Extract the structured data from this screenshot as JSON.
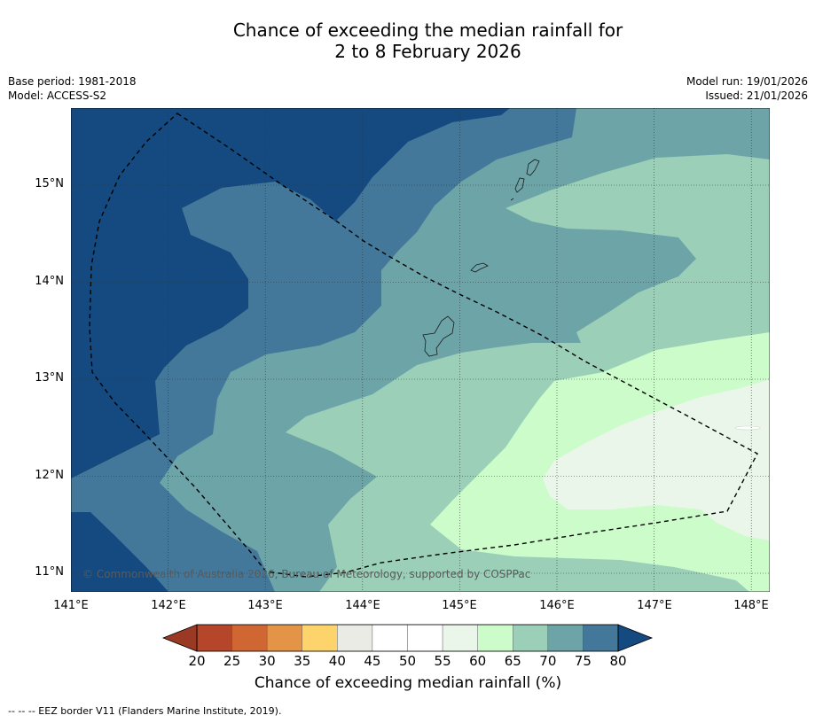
{
  "title": {
    "line1": "Chance of exceeding the median rainfall for",
    "line2": "2 to 8 February 2026"
  },
  "meta": {
    "base_period": "Base period: 1981-2018",
    "model": "Model: ACCESS-S2",
    "model_run": "Model run: 19/01/2026",
    "issued": "Issued: 21/01/2026"
  },
  "map": {
    "lat_labels": [
      "15°N",
      "14°N",
      "13°N",
      "12°N",
      "11°N"
    ],
    "lon_labels": [
      "141°E",
      "142°E",
      "143°E",
      "144°E",
      "145°E",
      "146°E",
      "147°E",
      "148°E"
    ],
    "copyright": "© Commonwealth of Australia 2026, Bureau of Meteorology, supported by COSPPac",
    "ocean_color": "#9bcfb8",
    "eez_line_style": "dashed black"
  },
  "colorbar": {
    "ticks": [
      "20",
      "25",
      "30",
      "35",
      "40",
      "45",
      "50",
      "55",
      "60",
      "65",
      "70",
      "75",
      "80"
    ],
    "colors": [
      "#b5462a",
      "#d06733",
      "#e39446",
      "#fdd36b",
      "#ebebe5",
      "#ffffff",
      "#ffffff",
      "#eaf6ea",
      "#cbfcca",
      "#9bcfb8",
      "#6da4a8",
      "#43789a"
    ],
    "under_color": "#9a3a25",
    "over_color": "#154a80",
    "label": "Chance of exceeding median rainfall (%)"
  },
  "footnote": "--  --  -- EEZ border V11 (Flanders Marine Institute, 2019)."
}
